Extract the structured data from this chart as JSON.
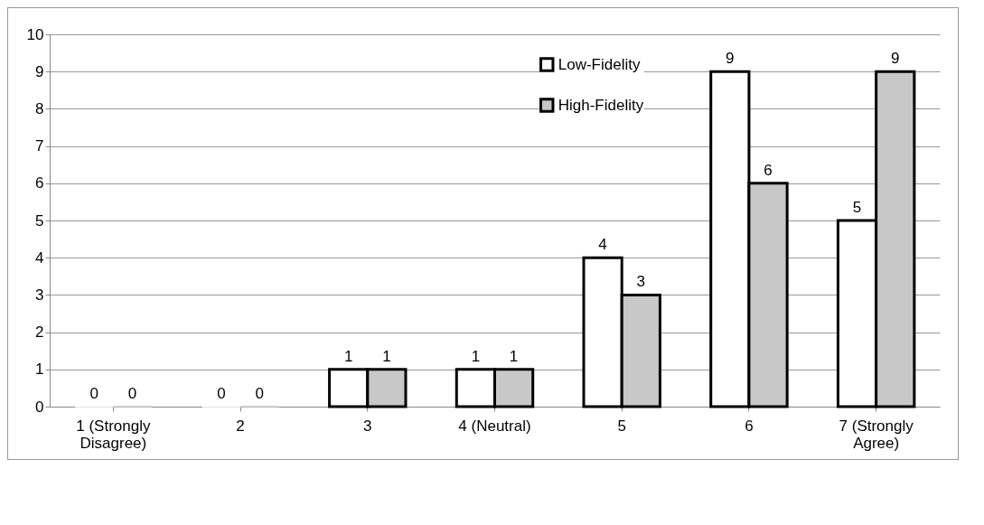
{
  "chart_data": {
    "type": "bar",
    "categories": [
      "1 (Strongly Disagree)",
      "2",
      "3",
      "4 (Neutral)",
      "5",
      "6",
      "7 (Strongly Agree)"
    ],
    "series": [
      {
        "name": "Low-Fidelity",
        "color": "#ffffff",
        "values": [
          0,
          0,
          1,
          1,
          4,
          9,
          5
        ]
      },
      {
        "name": "High-Fidelity",
        "color": "#c8c8c8",
        "values": [
          0,
          0,
          1,
          1,
          3,
          6,
          9
        ]
      }
    ],
    "ylim": [
      0,
      10
    ],
    "yticks": [
      0,
      1,
      2,
      3,
      4,
      5,
      6,
      7,
      8,
      9,
      10
    ],
    "grid": "y",
    "legend": "top right",
    "data_labels": true
  }
}
